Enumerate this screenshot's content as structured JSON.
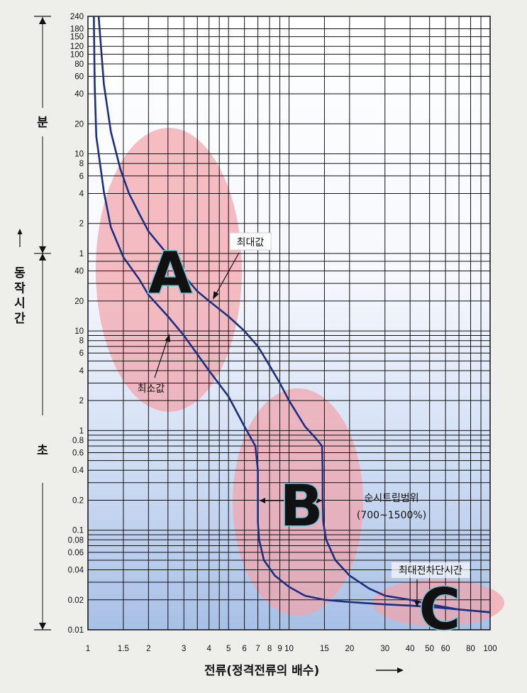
{
  "chart_data": {
    "type": "line",
    "x_scale": "log",
    "y_scale": "log",
    "xlim": [
      1,
      100
    ],
    "x_ticks": [
      {
        "v": 1,
        "label": "1"
      },
      {
        "v": 1.5,
        "label": "1.5"
      },
      {
        "v": 2,
        "label": "2"
      },
      {
        "v": 3,
        "label": "3"
      },
      {
        "v": 4,
        "label": "4"
      },
      {
        "v": 5,
        "label": "5"
      },
      {
        "v": 6,
        "label": "6"
      },
      {
        "v": 7,
        "label": "7"
      },
      {
        "v": 8,
        "label": "8"
      },
      {
        "v": 9,
        "label": "9"
      },
      {
        "v": 10,
        "label": "10"
      },
      {
        "v": 15,
        "label": "15"
      },
      {
        "v": 20,
        "label": "20"
      },
      {
        "v": 30,
        "label": "30"
      },
      {
        "v": 40,
        "label": "40"
      },
      {
        "v": 50,
        "label": "50"
      },
      {
        "v": 60,
        "label": "60"
      },
      {
        "v": 80,
        "label": "80"
      },
      {
        "v": 100,
        "label": "100"
      }
    ],
    "x_grid": [
      1,
      1.5,
      2,
      2.5,
      3,
      3.5,
      4,
      4.5,
      5,
      6,
      7,
      8,
      9,
      10,
      15,
      20,
      30,
      40,
      50,
      60,
      70,
      80,
      90,
      100
    ],
    "y_ticks": [
      {
        "t": 0.01,
        "label": "0.01"
      },
      {
        "t": 0.02,
        "label": "0.02"
      },
      {
        "t": 0.04,
        "label": "0.04"
      },
      {
        "t": 0.06,
        "label": "0.06"
      },
      {
        "t": 0.08,
        "label": "0.08"
      },
      {
        "t": 0.1,
        "label": "0.1"
      },
      {
        "t": 0.2,
        "label": "0.2"
      },
      {
        "t": 0.4,
        "label": "0.4"
      },
      {
        "t": 0.6,
        "label": "0.6"
      },
      {
        "t": 0.8,
        "label": "0.8"
      },
      {
        "t": 1,
        "label": "1"
      },
      {
        "t": 2,
        "label": "2"
      },
      {
        "t": 4,
        "label": "4"
      },
      {
        "t": 6,
        "label": "6"
      },
      {
        "t": 8,
        "label": "8"
      },
      {
        "t": 10,
        "label": "10"
      },
      {
        "t": 20,
        "label": "20"
      },
      {
        "t": 40,
        "label": "40"
      },
      {
        "t": 60,
        "label": "1"
      },
      {
        "t": 120,
        "label": "2"
      },
      {
        "t": 240,
        "label": "4"
      },
      {
        "t": 360,
        "label": "6"
      },
      {
        "t": 480,
        "label": "8"
      },
      {
        "t": 600,
        "label": "10"
      },
      {
        "t": 1200,
        "label": "20"
      },
      {
        "t": 2400,
        "label": "40"
      },
      {
        "t": 3600,
        "label": "60"
      },
      {
        "t": 4800,
        "label": "80"
      },
      {
        "t": 6000,
        "label": "100"
      },
      {
        "t": 7200,
        "label": "120"
      },
      {
        "t": 9000,
        "label": "150"
      },
      {
        "t": 10800,
        "label": "180"
      },
      {
        "t": 14400,
        "label": "240"
      }
    ],
    "y_grid_extra": [
      0.03,
      0.05,
      0.07,
      0.09,
      0.3,
      0.5,
      0.7,
      0.9,
      3,
      5,
      7,
      9,
      30,
      50
    ],
    "ylim_seconds": [
      0.01,
      14400
    ],
    "series": [
      {
        "key": "max",
        "points": [
          [
            1.13,
            14400
          ],
          [
            1.2,
            3000
          ],
          [
            1.3,
            1000
          ],
          [
            1.45,
            420
          ],
          [
            1.6,
            240
          ],
          [
            1.8,
            150
          ],
          [
            2,
            100
          ],
          [
            2.5,
            58
          ],
          [
            3,
            36
          ],
          [
            3.5,
            25
          ],
          [
            4,
            20
          ],
          [
            5,
            14
          ],
          [
            6,
            10
          ],
          [
            7,
            7
          ],
          [
            8,
            4.5
          ],
          [
            9,
            3
          ],
          [
            10,
            2
          ],
          [
            12,
            1.1
          ],
          [
            13.5,
            0.85
          ],
          [
            14.6,
            0.7
          ],
          [
            14.7,
            0.4
          ],
          [
            14.7,
            0.2
          ],
          [
            14.8,
            0.12
          ],
          [
            15.3,
            0.08
          ],
          [
            17,
            0.05
          ],
          [
            20,
            0.035
          ],
          [
            25,
            0.026
          ],
          [
            30,
            0.022
          ],
          [
            40,
            0.02
          ],
          [
            50,
            0.018
          ],
          [
            70,
            0.016
          ],
          [
            100,
            0.015
          ]
        ]
      },
      {
        "key": "min",
        "points": [
          [
            1.07,
            14400
          ],
          [
            1.08,
            3000
          ],
          [
            1.1,
            900
          ],
          [
            1.2,
            250
          ],
          [
            1.3,
            110
          ],
          [
            1.5,
            55
          ],
          [
            1.8,
            33
          ],
          [
            2,
            23
          ],
          [
            2.5,
            14
          ],
          [
            3,
            9
          ],
          [
            4,
            4
          ],
          [
            5,
            2.2
          ],
          [
            6,
            1.1
          ],
          [
            6.8,
            0.7
          ],
          [
            7,
            0.4
          ],
          [
            7,
            0.2
          ],
          [
            7,
            0.12
          ],
          [
            7.1,
            0.08
          ],
          [
            7.5,
            0.05
          ],
          [
            8.5,
            0.035
          ],
          [
            10,
            0.027
          ],
          [
            12,
            0.022
          ],
          [
            15,
            0.02
          ],
          [
            20,
            0.019
          ],
          [
            30,
            0.018
          ],
          [
            40,
            0.0175
          ],
          [
            50,
            0.017
          ],
          [
            70,
            0.016
          ],
          [
            100,
            0.015
          ]
        ]
      }
    ]
  },
  "labels": {
    "max_label": "최대값",
    "min_label": "최소값",
    "instant_trip_label": "순시트립범위",
    "instant_trip_range": "(700~1500%)",
    "max_total_clearing_label": "최대전차단시간",
    "region_a": "A",
    "region_b": "B",
    "region_c": "C",
    "unit_minutes": "분",
    "unit_seconds": "초",
    "y_axis_title": "동작시간",
    "x_axis_title": "전류(정격전류의 배수)"
  },
  "colors": {
    "curve": "#1c2f80",
    "region_fill": "#f3a3ab",
    "grid": "#111111",
    "bg_top": "#ffffff",
    "bg_bottom": "#a8c0e6"
  }
}
